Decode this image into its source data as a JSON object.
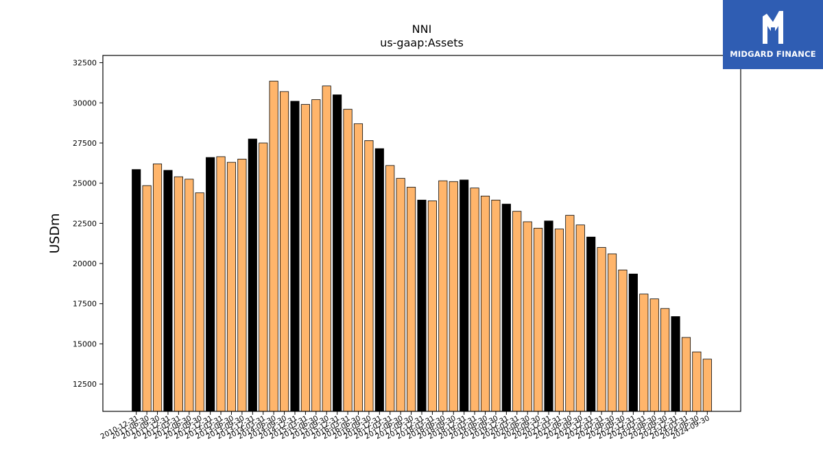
{
  "brand": {
    "name": "MIDGARD FINANCE",
    "bg_color": "#2f5db3"
  },
  "chart_data": {
    "type": "bar",
    "title": "NNI",
    "subtitle": "us-gaap:Assets",
    "xlabel": "",
    "ylabel": "USDm",
    "ylim": [
      10800,
      32950
    ],
    "yticks": [
      12500,
      15000,
      17500,
      20000,
      22500,
      25000,
      27500,
      30000,
      32500
    ],
    "grid": false,
    "colors": {
      "annual": "#000000",
      "quarterly": "#ffb56b",
      "edge": "#000000"
    },
    "categories": [
      "2010-12-31",
      "2011-06-30",
      "2011-09-30",
      "2011-12-31",
      "2012-03-31",
      "2012-06-30",
      "2012-09-30",
      "2012-12-31",
      "2013-03-31",
      "2013-06-30",
      "2013-09-30",
      "2013-12-31",
      "2014-03-31",
      "2014-06-30",
      "2014-09-30",
      "2014-12-31",
      "2015-03-31",
      "2015-06-30",
      "2015-09-30",
      "2015-12-31",
      "2016-03-31",
      "2016-06-30",
      "2016-09-30",
      "2016-12-31",
      "2017-03-31",
      "2017-06-30",
      "2017-09-30",
      "2017-12-31",
      "2018-03-31",
      "2018-06-30",
      "2018-09-30",
      "2018-12-31",
      "2019-03-31",
      "2019-06-30",
      "2019-09-30",
      "2019-12-31",
      "2020-03-31",
      "2020-06-30",
      "2020-09-30",
      "2020-12-31",
      "2021-03-31",
      "2021-06-30",
      "2021-09-30",
      "2021-12-31",
      "2022-03-31",
      "2022-06-30",
      "2022-09-30",
      "2022-12-31",
      "2023-03-31",
      "2023-06-30",
      "2023-09-30",
      "2023-12-31",
      "2024-03-31",
      "2024-06-30",
      "2024-09-30"
    ],
    "values": [
      25850,
      24850,
      26200,
      25800,
      25400,
      25250,
      24400,
      26600,
      26650,
      26300,
      26500,
      27750,
      27500,
      31350,
      30700,
      30100,
      29900,
      30200,
      31050,
      30500,
      29600,
      28700,
      27650,
      27150,
      26100,
      25300,
      24750,
      23950,
      23900,
      25150,
      25100,
      25200,
      24700,
      24200,
      23950,
      23700,
      23250,
      22600,
      22200,
      22650,
      22150,
      23000,
      22400,
      21650,
      21000,
      20600,
      19600,
      19350,
      18100,
      17800,
      17200,
      16700,
      15400,
      14500,
      14050
    ],
    "annual": [
      true,
      false,
      false,
      true,
      false,
      false,
      false,
      true,
      false,
      false,
      false,
      true,
      false,
      false,
      false,
      true,
      false,
      false,
      false,
      true,
      false,
      false,
      false,
      true,
      false,
      false,
      false,
      true,
      false,
      false,
      false,
      true,
      false,
      false,
      false,
      true,
      false,
      false,
      false,
      true,
      false,
      false,
      false,
      true,
      false,
      false,
      false,
      true,
      false,
      false,
      false,
      true,
      false,
      false,
      false
    ]
  }
}
